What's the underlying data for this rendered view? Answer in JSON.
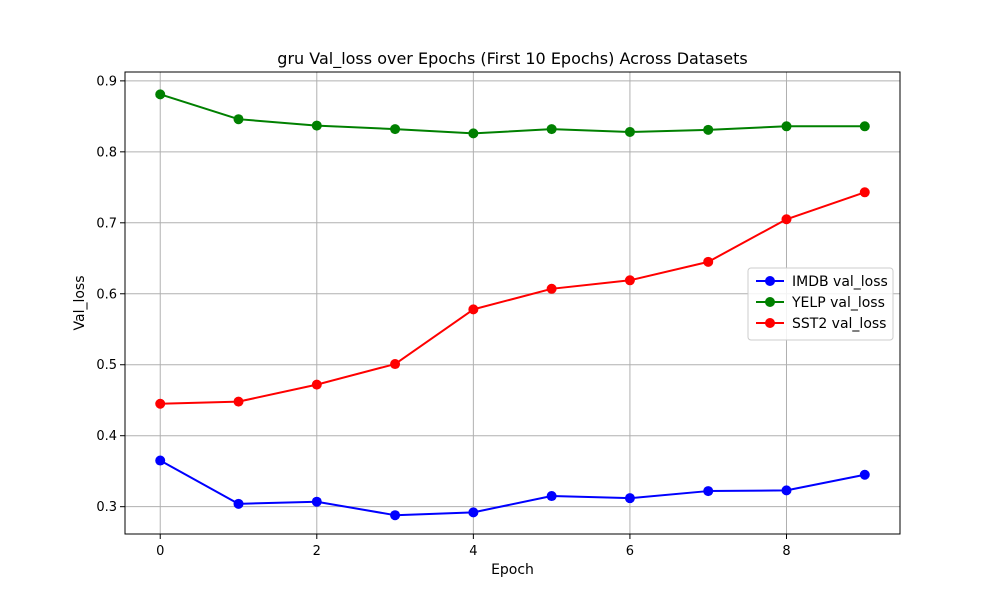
{
  "chart_data": {
    "type": "line",
    "title": "gru Val_loss over Epochs (First 10 Epochs) Across Datasets",
    "xlabel": "Epoch",
    "ylabel": "Val_loss",
    "x": [
      0,
      1,
      2,
      3,
      4,
      5,
      6,
      7,
      8,
      9
    ],
    "xlim": [
      -0.45,
      9.45
    ],
    "ylim": [
      0.2615,
      0.9125
    ],
    "xticks": [
      0,
      2,
      4,
      6,
      8
    ],
    "yticks": [
      0.3,
      0.4,
      0.5,
      0.6,
      0.7,
      0.8,
      0.9
    ],
    "xtick_labels": [
      "0",
      "2",
      "4",
      "6",
      "8"
    ],
    "ytick_labels": [
      "0.3",
      "0.4",
      "0.5",
      "0.6",
      "0.7",
      "0.8",
      "0.9"
    ],
    "grid": true,
    "legend_position": "center-right",
    "series": [
      {
        "name": "IMDB val_loss",
        "color": "#0000ff",
        "values": [
          0.365,
          0.304,
          0.307,
          0.288,
          0.292,
          0.315,
          0.312,
          0.322,
          0.323,
          0.345
        ]
      },
      {
        "name": "YELP val_loss",
        "color": "#008000",
        "values": [
          0.881,
          0.846,
          0.837,
          0.832,
          0.826,
          0.832,
          0.828,
          0.831,
          0.836,
          0.836
        ]
      },
      {
        "name": "SST2 val_loss",
        "color": "#ff0000",
        "values": [
          0.445,
          0.448,
          0.472,
          0.501,
          0.578,
          0.607,
          0.619,
          0.645,
          0.705,
          0.743
        ]
      }
    ]
  }
}
